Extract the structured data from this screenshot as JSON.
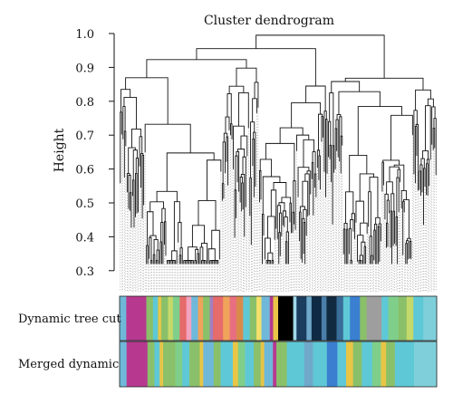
{
  "chart_data": {
    "type": "dendrogram",
    "title": "Cluster dendrogram",
    "ylabel": "Height",
    "xlabel": "",
    "ylim": [
      0.27,
      1.0
    ],
    "yticks": [
      1.0,
      0.9,
      0.8,
      0.7,
      0.6,
      0.5,
      0.4,
      0.3
    ],
    "ytick_labels": [
      "1.0",
      "0.9",
      "0.8",
      "0.7",
      "0.6",
      "0.5",
      "0.4",
      "0.3"
    ],
    "grid": false,
    "leaf_count": 230,
    "top_merge_height": 0.995,
    "color_bars": [
      {
        "label": "Dynamic tree cut",
        "segments": [
          {
            "color": "#6fb8d9",
            "frac": 0.02
          },
          {
            "color": "#b6398f",
            "frac": 0.06
          },
          {
            "color": "#8ac06a",
            "frac": 0.02
          },
          {
            "color": "#5fc8d6",
            "frac": 0.015
          },
          {
            "color": "#e8c547",
            "frac": 0.01
          },
          {
            "color": "#8ac06a",
            "frac": 0.02
          },
          {
            "color": "#c5d96a",
            "frac": 0.015
          },
          {
            "color": "#7fcf8a",
            "frac": 0.02
          },
          {
            "color": "#e66b6b",
            "frac": 0.02
          },
          {
            "color": "#f2a3c0",
            "frac": 0.015
          },
          {
            "color": "#6fb8d9",
            "frac": 0.02
          },
          {
            "color": "#f0a35a",
            "frac": 0.015
          },
          {
            "color": "#8ac06a",
            "frac": 0.02
          },
          {
            "color": "#a080c0",
            "frac": 0.01
          },
          {
            "color": "#e66b6b",
            "frac": 0.03
          },
          {
            "color": "#f0a35a",
            "frac": 0.02
          },
          {
            "color": "#e86f7f",
            "frac": 0.02
          },
          {
            "color": "#d98a4a",
            "frac": 0.02
          },
          {
            "color": "#5fc8d6",
            "frac": 0.02
          },
          {
            "color": "#8ac06a",
            "frac": 0.02
          },
          {
            "color": "#f2e06a",
            "frac": 0.015
          },
          {
            "color": "#6fb8d9",
            "frac": 0.025
          },
          {
            "color": "#b6398f",
            "frac": 0.01
          },
          {
            "color": "#e8c547",
            "frac": 0.015
          },
          {
            "color": "#000000",
            "frac": 0.045
          },
          {
            "color": "#a0d8e8",
            "frac": 0.01
          },
          {
            "color": "#1b3d5e",
            "frac": 0.03
          },
          {
            "color": "#6fa8c9",
            "frac": 0.015
          },
          {
            "color": "#0e2a44",
            "frac": 0.03
          },
          {
            "color": "#4a7ea8",
            "frac": 0.015
          },
          {
            "color": "#122a3f",
            "frac": 0.03
          },
          {
            "color": "#3a6d9a",
            "frac": 0.02
          },
          {
            "color": "#5fc8d6",
            "frac": 0.02
          },
          {
            "color": "#3a7fd0",
            "frac": 0.03
          },
          {
            "color": "#8ac06a",
            "frac": 0.02
          },
          {
            "color": "#9e9e9e",
            "frac": 0.045
          },
          {
            "color": "#5fc8d6",
            "frac": 0.02
          },
          {
            "color": "#7fcf8a",
            "frac": 0.03
          },
          {
            "color": "#8ac06a",
            "frac": 0.025
          },
          {
            "color": "#c5d96a",
            "frac": 0.02
          },
          {
            "color": "#5fc8d6",
            "frac": 0.03
          },
          {
            "color": "#7fcfda",
            "frac": 0.04
          }
        ]
      },
      {
        "label": "Merged dynamic",
        "segments": [
          {
            "color": "#6fb8d9",
            "frac": 0.02
          },
          {
            "color": "#b6398f",
            "frac": 0.06
          },
          {
            "color": "#8ac06a",
            "frac": 0.02
          },
          {
            "color": "#5fc8d6",
            "frac": 0.015
          },
          {
            "color": "#e8c547",
            "frac": 0.01
          },
          {
            "color": "#8ac06a",
            "frac": 0.035
          },
          {
            "color": "#7fcf8a",
            "frac": 0.02
          },
          {
            "color": "#5fc8d6",
            "frac": 0.02
          },
          {
            "color": "#8ac06a",
            "frac": 0.03
          },
          {
            "color": "#e8c547",
            "frac": 0.01
          },
          {
            "color": "#6fb8d9",
            "frac": 0.03
          },
          {
            "color": "#8ac06a",
            "frac": 0.02
          },
          {
            "color": "#5fc8d6",
            "frac": 0.035
          },
          {
            "color": "#e8c547",
            "frac": 0.015
          },
          {
            "color": "#7fcf8a",
            "frac": 0.02
          },
          {
            "color": "#5fc8d6",
            "frac": 0.025
          },
          {
            "color": "#8ac06a",
            "frac": 0.02
          },
          {
            "color": "#e8c547",
            "frac": 0.01
          },
          {
            "color": "#6fb8d9",
            "frac": 0.025
          },
          {
            "color": "#b6398f",
            "frac": 0.01
          },
          {
            "color": "#8ac06a",
            "frac": 0.03
          },
          {
            "color": "#5fc8d6",
            "frac": 0.05
          },
          {
            "color": "#6fa8c9",
            "frac": 0.025
          },
          {
            "color": "#5fc8d6",
            "frac": 0.04
          },
          {
            "color": "#3a7fd0",
            "frac": 0.03
          },
          {
            "color": "#5fc8d6",
            "frac": 0.025
          },
          {
            "color": "#e8c547",
            "frac": 0.02
          },
          {
            "color": "#8ac06a",
            "frac": 0.025
          },
          {
            "color": "#5fc8d6",
            "frac": 0.03
          },
          {
            "color": "#7fcf8a",
            "frac": 0.025
          },
          {
            "color": "#e8c547",
            "frac": 0.015
          },
          {
            "color": "#8ac06a",
            "frac": 0.025
          },
          {
            "color": "#5fc8d6",
            "frac": 0.055
          },
          {
            "color": "#7fcfda",
            "frac": 0.065
          }
        ]
      }
    ]
  }
}
